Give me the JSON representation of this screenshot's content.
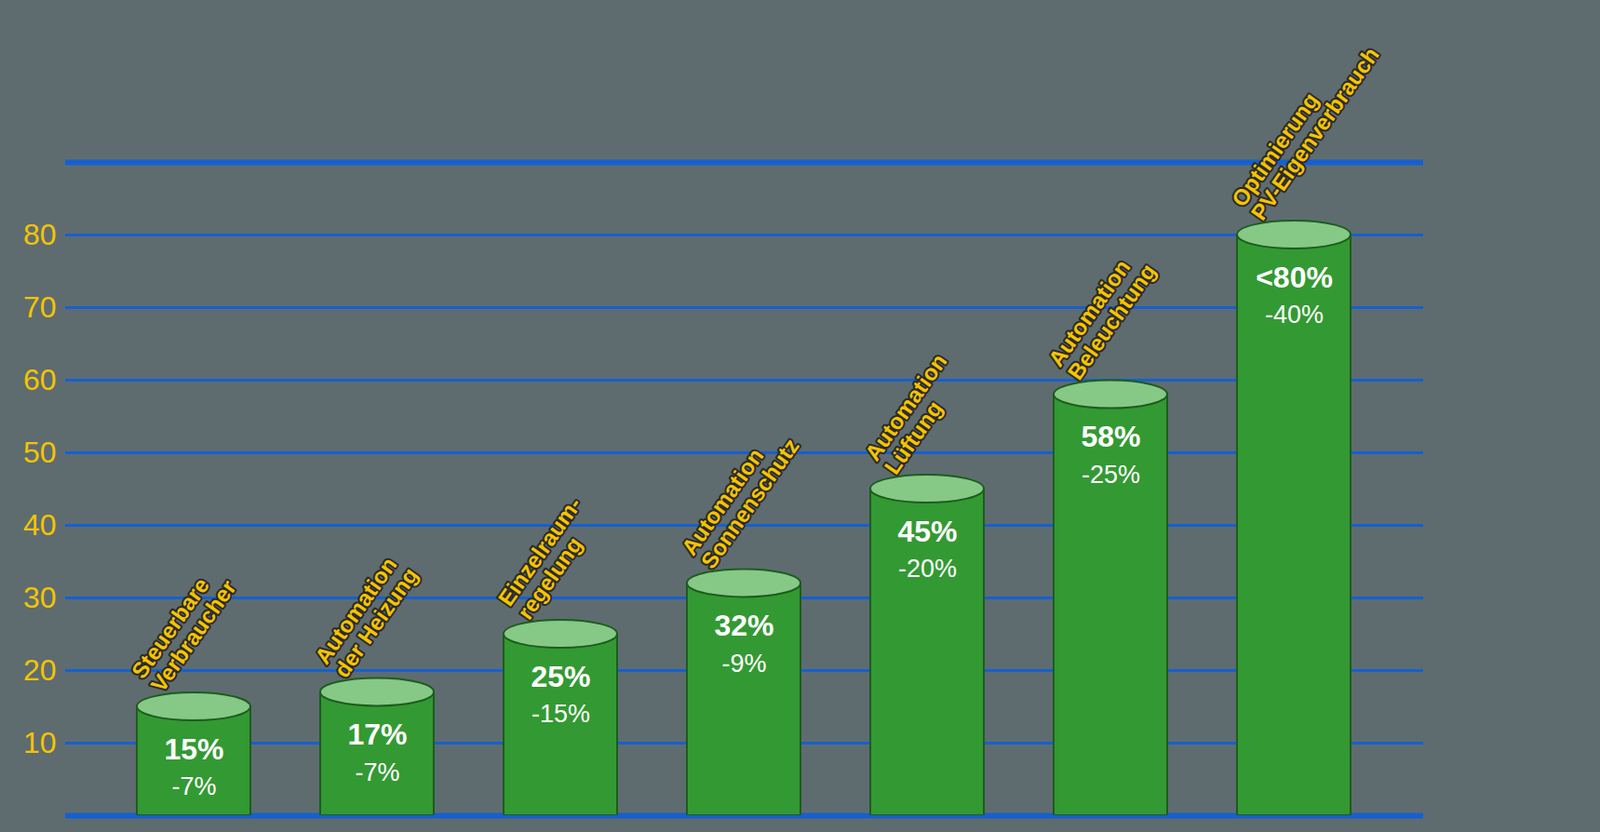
{
  "chart_data": {
    "type": "bar",
    "categories": [
      "Steuerbare\nVerbraucher",
      "Automation\nder Heizung",
      "Einzelraum-\nregelung",
      "Automation\nSonnenschutz",
      "Automation\nLüftung",
      "Automation\nBeleuchtung",
      "Optimierung\nPV-Eigenverbrauch"
    ],
    "values": [
      15,
      17,
      25,
      32,
      45,
      58,
      80
    ],
    "value_labels": [
      "15%",
      "17%",
      "25%",
      "32%",
      "45%",
      "58%",
      "<80%"
    ],
    "annotations": [
      "-7%",
      "-7%",
      "-15%",
      "-9%",
      "-20%",
      "-25%",
      "-40%"
    ],
    "color": "#339933",
    "ylim": [
      0,
      90
    ],
    "yticks": [
      10,
      20,
      30,
      40,
      50,
      60,
      70,
      80
    ],
    "grid": true,
    "data_labels": true
  }
}
